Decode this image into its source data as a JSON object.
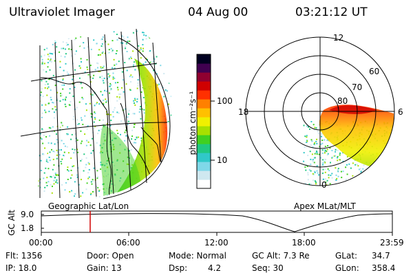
{
  "header": {
    "title": "Ultraviolet Imager",
    "date": "04 Aug 00",
    "time": "03:21:12 UT"
  },
  "colorbar": {
    "unit_label": "photon cm⁻²s⁻¹",
    "ticks": [
      "100",
      "10"
    ],
    "tick_values": [
      100,
      10
    ],
    "scale": "log",
    "colors": [
      "#ffffff",
      "#cfe8f0",
      "#7fd8e8",
      "#30c8c8",
      "#20c880",
      "#40d020",
      "#a8e000",
      "#f0f000",
      "#ffc000",
      "#ff8000",
      "#ff3000",
      "#d00000",
      "#900030",
      "#400050",
      "#000020"
    ]
  },
  "left_map": {
    "caption": "Geographic Lat/Lon"
  },
  "right_map": {
    "caption": "Apex MLat/MLT",
    "lat_labels": [
      "60",
      "70",
      "80"
    ],
    "mlt_labels": {
      "top": "12",
      "left": "18",
      "right": "6",
      "bottom": "0"
    }
  },
  "alt_plot": {
    "ylabel": "GC Alt",
    "yticks": [
      "9.0",
      "1.8"
    ],
    "xticks": [
      "00:00",
      "06:00",
      "12:00",
      "18:00",
      "23:59"
    ],
    "current_time_marker": "03:21",
    "marker_color": "#d00000"
  },
  "info": {
    "flt": "Flt: 1356",
    "ip": "IP: 18.0",
    "door": "Door: Open",
    "gain": "Gain: 13",
    "mode": "Mode: Normal",
    "dsp_label": "Dsp:",
    "dsp_value": "4.2",
    "gcalt": "GC Alt: 7.3 Re",
    "seq": "Seq: 30",
    "glat_label": "GLat:",
    "glat_value": "34.7",
    "glon_label": "GLon:",
    "glon_value": "358.4"
  }
}
